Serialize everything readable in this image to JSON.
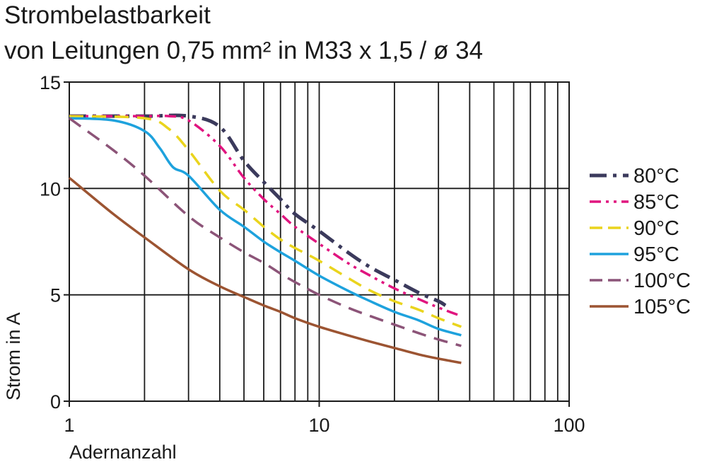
{
  "chart_data": {
    "type": "line",
    "title": "Strombelastbarkeit",
    "subtitle": "von Leitungen 0,75 mm² in M33 x 1,5 / ø 34",
    "xlabel": "Adernanzahl",
    "ylabel": "Strom in A",
    "x_scale": "log",
    "xlim": [
      1,
      100
    ],
    "ylim": [
      0,
      15
    ],
    "x_ticks": [
      "1",
      "10",
      "100"
    ],
    "y_ticks": [
      "0",
      "5",
      "10",
      "15"
    ],
    "grid": true,
    "legend_position": "right",
    "series": [
      {
        "name": "80°C",
        "color": "#3b3a5c",
        "dash": "dash-dot",
        "x": [
          1,
          2,
          3,
          4,
          5,
          6,
          7,
          8,
          10,
          13,
          16,
          20,
          25,
          30,
          32
        ],
        "y": [
          13.4,
          13.4,
          13.4,
          12.9,
          11.3,
          10.3,
          9.5,
          8.8,
          8.0,
          7.0,
          6.3,
          5.7,
          5.1,
          4.7,
          4.5
        ]
      },
      {
        "name": "85°C",
        "color": "#e0157f",
        "dash": "dash-dot-dot",
        "x": [
          1,
          2,
          2.5,
          3,
          4,
          5,
          6,
          7,
          8,
          10,
          13,
          16,
          20,
          25,
          30,
          37
        ],
        "y": [
          13.4,
          13.4,
          13.4,
          13.2,
          12.0,
          10.5,
          9.5,
          8.8,
          8.2,
          7.4,
          6.5,
          5.9,
          5.3,
          4.8,
          4.4,
          4.0
        ]
      },
      {
        "name": "90°C",
        "color": "#ead41d",
        "dash": "dash",
        "x": [
          1,
          2,
          2.5,
          3,
          4,
          5,
          6,
          7,
          8,
          10,
          13,
          16,
          20,
          25,
          30,
          37
        ],
        "y": [
          13.4,
          13.3,
          12.8,
          11.8,
          9.9,
          9.0,
          8.2,
          7.6,
          7.2,
          6.6,
          5.8,
          5.2,
          4.7,
          4.3,
          3.9,
          3.5
        ]
      },
      {
        "name": "95°C",
        "color": "#1ea2dd",
        "dash": "solid",
        "x": [
          1,
          1.5,
          2,
          2.3,
          2.6,
          3,
          4,
          5,
          6,
          7,
          8,
          10,
          13,
          16,
          20,
          25,
          30,
          37
        ],
        "y": [
          13.3,
          13.2,
          12.7,
          11.9,
          11.0,
          10.6,
          9.0,
          8.2,
          7.5,
          7.0,
          6.6,
          5.9,
          5.2,
          4.7,
          4.2,
          3.8,
          3.4,
          3.1
        ]
      },
      {
        "name": "100°C",
        "color": "#8c5478",
        "dash": "dash",
        "x": [
          1,
          1.5,
          2,
          3,
          4,
          5,
          6,
          7,
          8,
          10,
          13,
          16,
          20,
          25,
          30,
          37
        ],
        "y": [
          13.3,
          11.8,
          10.6,
          8.7,
          7.7,
          7.0,
          6.5,
          6.0,
          5.6,
          5.0,
          4.4,
          4.0,
          3.6,
          3.2,
          2.9,
          2.6
        ]
      },
      {
        "name": "105°C",
        "color": "#9c5432",
        "dash": "solid",
        "x": [
          1,
          1.5,
          2,
          3,
          4,
          5,
          6,
          7,
          8,
          10,
          13,
          16,
          20,
          25,
          30,
          37
        ],
        "y": [
          10.5,
          8.8,
          7.7,
          6.2,
          5.4,
          4.9,
          4.5,
          4.2,
          3.9,
          3.5,
          3.1,
          2.8,
          2.5,
          2.2,
          2.0,
          1.8
        ]
      }
    ]
  }
}
